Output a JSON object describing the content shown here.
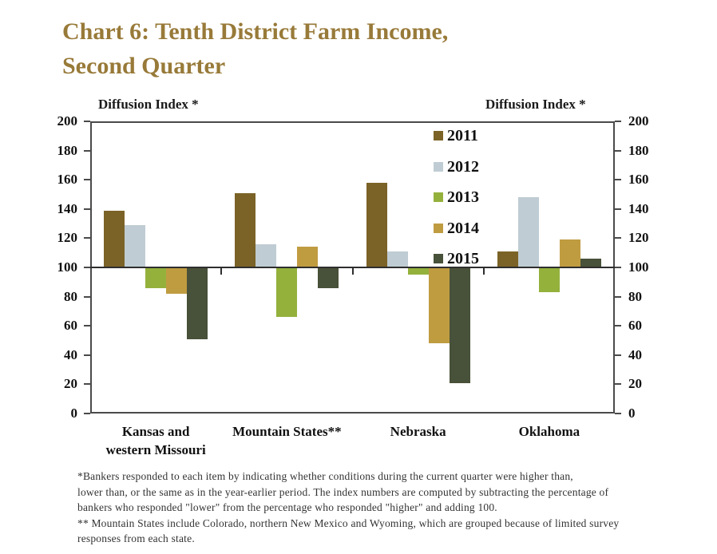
{
  "title": {
    "line1": "Chart 6: Tenth District Farm Income,",
    "line2": "Second Quarter"
  },
  "chart_data": {
    "type": "bar",
    "title": "Chart 6: Tenth District Farm Income, Second Quarter",
    "ylabel_left": "Diffusion Index *",
    "ylabel_right": "Diffusion Index *",
    "ylim": [
      0,
      200
    ],
    "yticks": [
      0,
      20,
      40,
      60,
      80,
      100,
      120,
      140,
      160,
      180,
      200
    ],
    "baseline": 100,
    "grid": false,
    "legend_position": "inside-top-right",
    "categories": [
      "Kansas and western Missouri",
      "Mountain States**",
      "Nebraska",
      "Oklahoma"
    ],
    "category_display_lines": [
      [
        "Kansas and",
        "western Missouri"
      ],
      [
        "Mountain States**"
      ],
      [
        "Nebraska"
      ],
      [
        "Oklahoma"
      ]
    ],
    "series": [
      {
        "name": "2011",
        "color": "#7b6327",
        "values": [
          139,
          151,
          158,
          111
        ]
      },
      {
        "name": "2012",
        "color": "#bfccd3",
        "values": [
          129,
          116,
          111,
          148
        ]
      },
      {
        "name": "2013",
        "color": "#94b13c",
        "values": [
          86,
          66,
          95,
          83
        ]
      },
      {
        "name": "2014",
        "color": "#c09c41",
        "values": [
          82,
          114,
          48,
          119
        ]
      },
      {
        "name": "2015",
        "color": "#485139",
        "values": [
          51,
          86,
          21,
          106
        ]
      }
    ]
  },
  "footnotes": {
    "lines": [
      "*Bankers responded to each item by indicating whether conditions during the current quarter were higher than,",
      "lower than, or the same as in the year-earlier period.  The index numbers are computed by subtracting the percentage of",
      "bankers who responded \"lower\" from the percentage who responded \"higher\" and adding 100.",
      "** Mountain States include Colorado, northern New Mexico and Wyoming, which are grouped because of limited survey",
      "responses from each state."
    ]
  },
  "colors": {
    "title": "#987a39",
    "axis": "#4a4a4a",
    "baseline": "#2e2e2e",
    "text": "#111111"
  }
}
